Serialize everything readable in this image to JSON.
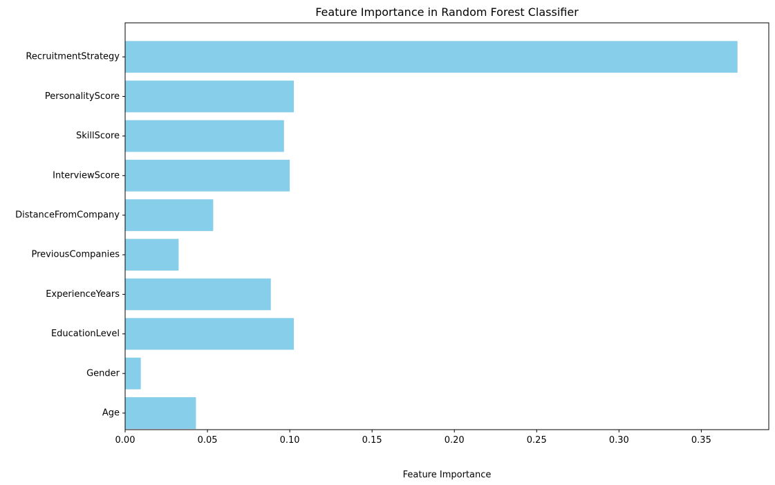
{
  "chart_data": {
    "type": "bar",
    "orientation": "horizontal",
    "title": "Feature Importance in Random Forest Classifier",
    "xlabel": "Feature Importance",
    "ylabel": "",
    "categories": [
      "Age",
      "Gender",
      "EducationLevel",
      "ExperienceYears",
      "PreviousCompanies",
      "DistanceFromCompany",
      "InterviewScore",
      "SkillScore",
      "PersonalityScore",
      "RecruitmentStrategy"
    ],
    "values": [
      0.043,
      0.0095,
      0.1025,
      0.0885,
      0.0325,
      0.0535,
      0.1,
      0.0965,
      0.1025,
      0.372
    ],
    "xlim": [
      0,
      0.391
    ],
    "xticks": [
      0.0,
      0.05,
      0.1,
      0.15,
      0.2,
      0.25,
      0.3,
      0.35
    ],
    "xtick_labels": [
      "0.00",
      "0.05",
      "0.10",
      "0.15",
      "0.20",
      "0.25",
      "0.30",
      "0.35"
    ],
    "bar_color": "#87CEEB",
    "grid": false,
    "legend": false
  }
}
